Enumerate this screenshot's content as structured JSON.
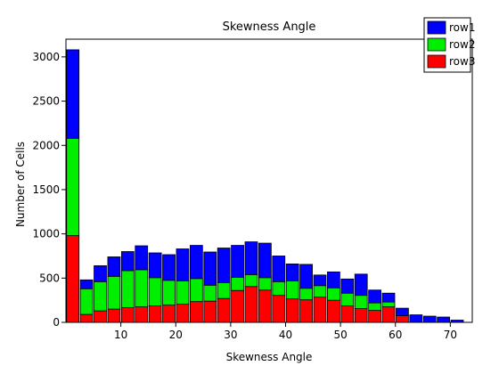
{
  "chart_data": {
    "type": "bar",
    "stacked": true,
    "title": "Skewness Angle",
    "xlabel": "Skewness Angle",
    "ylabel": "Number of Cells",
    "xlim": [
      0,
      74
    ],
    "ylim": [
      0,
      3200
    ],
    "xticks": [
      10,
      20,
      30,
      40,
      50,
      60,
      70
    ],
    "yticks": [
      0,
      500,
      1000,
      1500,
      2000,
      2500,
      3000
    ],
    "grid": false,
    "legend_position": "top-right",
    "bin_width": 2.5,
    "x": [
      1.25,
      3.75,
      6.25,
      8.75,
      11.25,
      13.75,
      16.25,
      18.75,
      21.25,
      23.75,
      26.25,
      28.75,
      31.25,
      33.75,
      36.25,
      38.75,
      41.25,
      43.75,
      46.25,
      48.75,
      51.25,
      53.75,
      56.25,
      58.75,
      61.25,
      63.75,
      66.25,
      68.75,
      71.25
    ],
    "series": [
      {
        "name": "row3",
        "color": "#ff0000",
        "values": [
          980,
          90,
          130,
          150,
          165,
          175,
          185,
          195,
          205,
          235,
          240,
          270,
          360,
          405,
          365,
          305,
          265,
          255,
          285,
          250,
          185,
          155,
          135,
          175,
          75,
          0,
          0,
          0,
          0
        ]
      },
      {
        "name": "row2",
        "color": "#00ee00",
        "values": [
          1100,
          290,
          330,
          370,
          420,
          420,
          320,
          280,
          265,
          260,
          180,
          180,
          150,
          135,
          140,
          155,
          205,
          130,
          130,
          140,
          145,
          150,
          85,
          55,
          0,
          0,
          0,
          0,
          0
        ]
      },
      {
        "name": "row1",
        "color": "#0000ff",
        "values": [
          1000,
          100,
          180,
          220,
          215,
          270,
          280,
          290,
          360,
          375,
          375,
          390,
          360,
          370,
          390,
          290,
          190,
          270,
          120,
          180,
          160,
          240,
          145,
          100,
          85,
          85,
          70,
          60,
          25
        ]
      }
    ]
  }
}
